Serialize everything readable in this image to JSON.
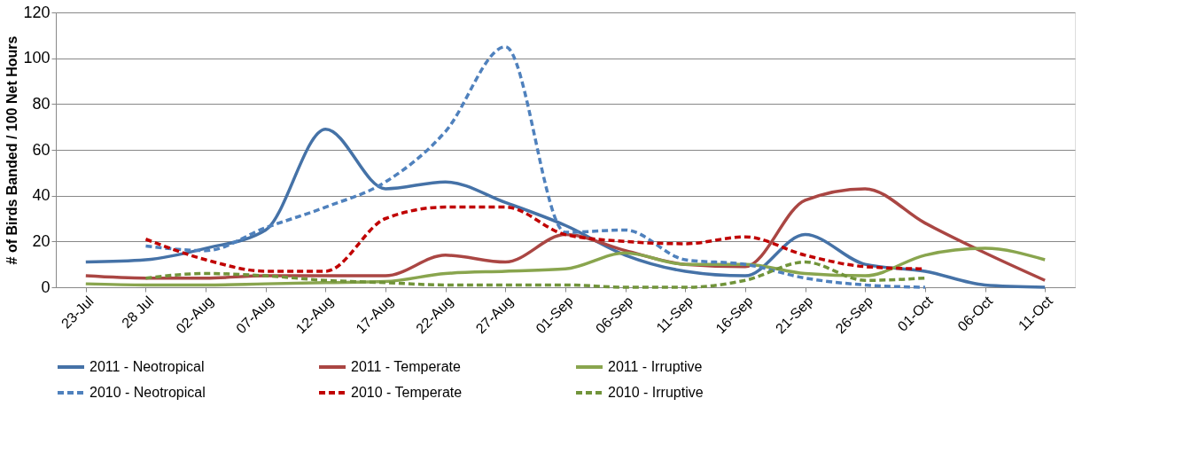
{
  "chart_data": {
    "type": "line",
    "ylabel": "# of Birds Banded / 100 Net Hours",
    "categories": [
      "23-Jul",
      "28 Jul",
      "02-Aug",
      "07-Aug",
      "12-Aug",
      "17-Aug",
      "22-Aug",
      "27-Aug",
      "01-Sep",
      "06-Sep",
      "11-Sep",
      "16-Sep",
      "21-Sep",
      "26-Sep",
      "01-Oct",
      "06-Oct",
      "11-Oct"
    ],
    "ylim": [
      0,
      120
    ],
    "yticks": [
      0,
      20,
      40,
      60,
      80,
      100,
      120
    ],
    "grid": "y",
    "legend": "bottom",
    "marker": "none",
    "series": [
      {
        "name": "2011 - Neotropical",
        "color": "#4572a7",
        "line_style": "solid",
        "values": [
          11,
          12,
          17,
          25,
          69,
          43,
          46,
          37,
          27,
          14,
          7,
          5,
          23,
          10,
          7,
          1,
          0
        ]
      },
      {
        "name": "2011 - Temperate",
        "color": "#aa4643",
        "line_style": "solid",
        "values": [
          5,
          4,
          4,
          5,
          5,
          5,
          14,
          11,
          23,
          16,
          10,
          9,
          38,
          43,
          28,
          15,
          3
        ]
      },
      {
        "name": "2011 - Irruptive",
        "color": "#89a54e",
        "line_style": "solid",
        "values": [
          1.5,
          1,
          1,
          1.5,
          2,
          2.5,
          6,
          7,
          8,
          15,
          10,
          10,
          6,
          5,
          14,
          17,
          12
        ]
      },
      {
        "name": "2010 - Neotropical",
        "color": "#4f81bd",
        "line_style": "dashed",
        "values": [
          null,
          18,
          16,
          26,
          35,
          46,
          68,
          105,
          24,
          25,
          12,
          10,
          4,
          1,
          0,
          null,
          null
        ]
      },
      {
        "name": "2010 - Temperate",
        "color": "#c00000",
        "line_style": "dashed",
        "values": [
          null,
          21,
          12,
          7,
          7,
          30,
          35,
          35,
          23,
          20,
          19,
          22,
          14,
          9,
          8,
          null,
          null
        ]
      },
      {
        "name": "2010 - Irruptive",
        "color": "#71943a",
        "line_style": "dashed",
        "values": [
          null,
          4,
          6,
          5,
          3,
          2,
          1,
          1,
          1,
          0,
          0,
          3,
          11,
          3,
          4,
          null,
          null
        ]
      }
    ]
  }
}
